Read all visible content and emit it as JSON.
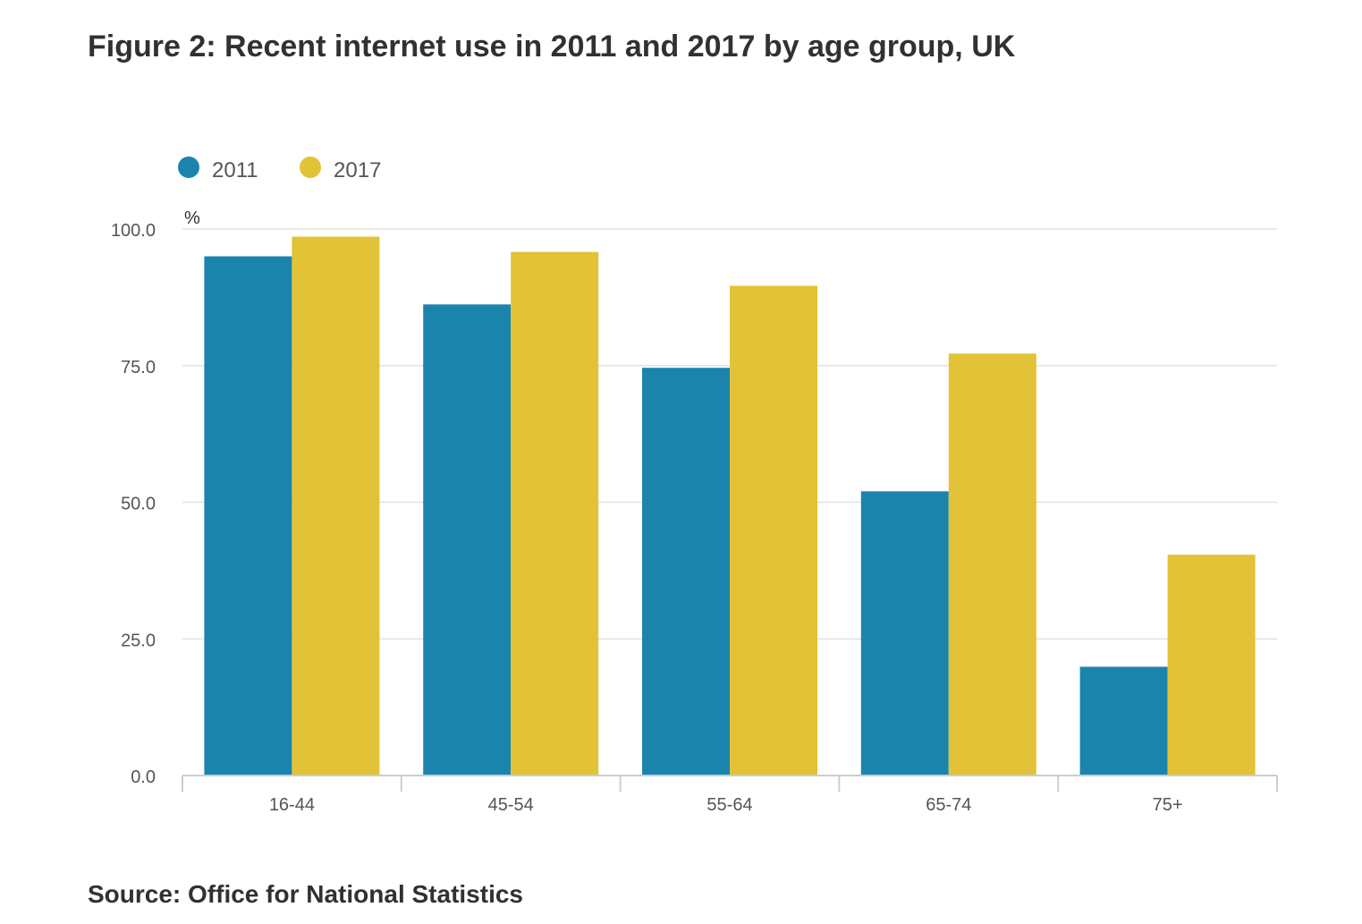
{
  "title": "Figure 2: Recent internet use in 2011 and 2017 by age group, UK",
  "source": "Source: Office for National Statistics",
  "colors": {
    "series_2011": "#1b84ad",
    "series_2017": "#e2c237",
    "grid": "#e2e2e3",
    "axis": "#c9cdd6",
    "text": "#323132",
    "tick_text": "#555555"
  },
  "chart_data": {
    "type": "bar",
    "categories": [
      "16-44",
      "45-54",
      "55-64",
      "65-74",
      "75+"
    ],
    "series": [
      {
        "name": "2011",
        "values": [
          95.0,
          86.2,
          74.6,
          52.0,
          19.9
        ]
      },
      {
        "name": "2017",
        "values": [
          98.6,
          95.8,
          89.6,
          77.2,
          40.4
        ]
      }
    ],
    "ylabel": "%",
    "xlabel": "",
    "ylim": [
      0,
      100
    ],
    "yticks": [
      "0.0",
      "25.0",
      "50.0",
      "75.0",
      "100.0"
    ],
    "grid": true,
    "legend_position": "top-left"
  }
}
